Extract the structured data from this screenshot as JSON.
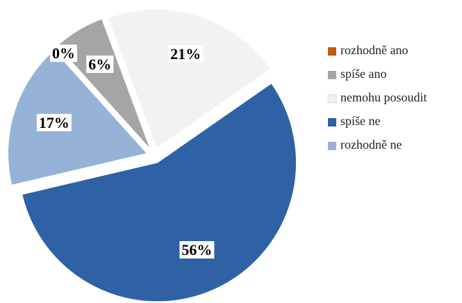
{
  "chart_data": {
    "type": "pie",
    "categories": [
      "rozhodně ano",
      "spíše ano",
      "nemohu posoudit",
      "spíše ne",
      "rozhodně ne"
    ],
    "values": [
      0,
      6,
      21,
      56,
      17
    ],
    "value_labels": [
      "0%",
      "6%",
      "21%",
      "56%",
      "17%"
    ],
    "colors": [
      "#c55a11",
      "#a5a5a5",
      "#f2f2f2",
      "#2e62a4",
      "#95b3d7"
    ],
    "legend": "right"
  }
}
